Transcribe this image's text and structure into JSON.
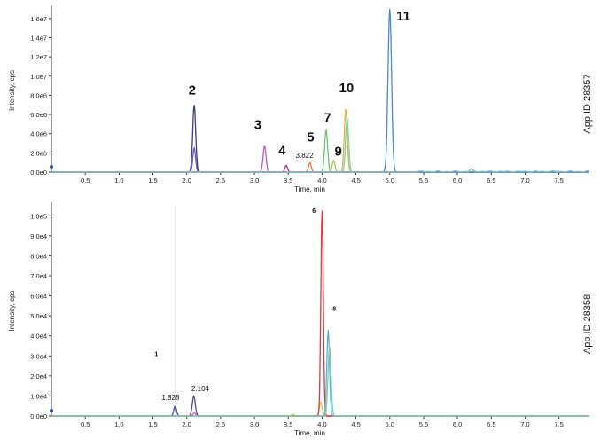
{
  "chart_data": [
    {
      "type": "line",
      "xlabel": "Time, min",
      "ylabel": "Intensity, cps",
      "side_label": "App ID 28357",
      "xlim": [
        0,
        7.95
      ],
      "ylim": [
        0,
        17000000.0
      ],
      "x_ticks": [
        0.5,
        1.0,
        1.5,
        2.0,
        2.5,
        3.0,
        3.5,
        4.0,
        4.5,
        5.0,
        5.5,
        6.0,
        6.5,
        7.0,
        7.5
      ],
      "x_tick_labels": [
        "0.5",
        "1.0",
        "1.5",
        "2.0",
        "2.5",
        "3.0",
        "3.5",
        "4.0",
        "4.5",
        "5.0",
        "5.5",
        "6.0",
        "6.5",
        "7.0",
        "7.5"
      ],
      "y_ticks": [
        0,
        2000000.0,
        4000000.0,
        6000000.0,
        8000000.0,
        10000000.0,
        12000000.0,
        14000000.0,
        16000000.0
      ],
      "y_tick_labels": [
        "0.0e0",
        "2.0e6",
        "4.0e6",
        "6.0e6",
        "8.0e6",
        "1.0e7",
        "1.2e7",
        "1.4e7",
        "1.6e7"
      ],
      "series": [
        {
          "color": "#3b3a8c",
          "peaks": [
            {
              "x": 2.11,
              "y": 7000000,
              "w": 0.022
            }
          ]
        },
        {
          "color": "#6a5ab0",
          "peaks": [
            {
              "x": 2.11,
              "y": 2500000,
              "w": 0.02
            }
          ]
        },
        {
          "color": "#b45ac8",
          "peaks": [
            {
              "x": 3.15,
              "y": 2700000,
              "w": 0.022
            }
          ]
        },
        {
          "color": "#a03070",
          "peaks": [
            {
              "x": 3.47,
              "y": 700000,
              "w": 0.02
            }
          ]
        },
        {
          "color": "#e07a3a",
          "peaks": [
            {
              "x": 3.82,
              "y": 1000000,
              "w": 0.02
            }
          ]
        },
        {
          "color": "#6cc46c",
          "peaks": [
            {
              "x": 4.06,
              "y": 4400000,
              "w": 0.022
            }
          ]
        },
        {
          "color": "#9ccc4a",
          "peaks": [
            {
              "x": 4.17,
              "y": 1200000,
              "w": 0.02
            }
          ]
        },
        {
          "color": "#d8b84a",
          "peaks": [
            {
              "x": 4.35,
              "y": 6600000,
              "w": 0.022
            }
          ]
        },
        {
          "color": "#7fd0a8",
          "peaks": [
            {
              "x": 4.37,
              "y": 5700000,
              "w": 0.022
            }
          ]
        },
        {
          "color": "#4a88c8",
          "peaks": [
            {
              "x": 5.0,
              "y": 17000000,
              "w": 0.026
            }
          ]
        },
        {
          "color": "#8ab8d8",
          "peaks": [
            {
              "x": 6.2,
              "y": 250000,
              "w": 0.02
            }
          ],
          "noise": 120000,
          "noise_from": 5.4
        }
      ],
      "baselines": [
        {
          "color": "#d03a3a",
          "y": 0
        },
        {
          "color": "#3b8a8c",
          "y": 0
        }
      ],
      "peak_labels": [
        {
          "text": "2",
          "x": 2.08,
          "y": 8100000,
          "size": "large"
        },
        {
          "text": "3",
          "x": 3.05,
          "y": 4500000,
          "size": "large"
        },
        {
          "text": "4",
          "x": 3.41,
          "y": 1800000,
          "size": "large"
        },
        {
          "text": "5",
          "x": 3.83,
          "y": 3200000,
          "size": "large"
        },
        {
          "text": "3.822",
          "x": 3.74,
          "y": 1500000,
          "size": "small"
        },
        {
          "text": "7",
          "x": 4.08,
          "y": 5200000,
          "size": "large"
        },
        {
          "text": "9",
          "x": 4.24,
          "y": 1700000,
          "size": "large"
        },
        {
          "text": "10",
          "x": 4.36,
          "y": 8300000,
          "size": "large"
        },
        {
          "text": "11",
          "x": 5.2,
          "y": 15800000,
          "size": "large"
        }
      ]
    },
    {
      "type": "line",
      "xlabel": "Time, min",
      "ylabel": "Intensity, cps",
      "side_label": "App ID 28358",
      "xlim": [
        0,
        7.95
      ],
      "ylim": [
        0,
        105000.0
      ],
      "x_ticks": [
        0.5,
        1.0,
        1.5,
        2.0,
        2.5,
        3.0,
        3.5,
        4.0,
        4.5,
        5.0,
        5.5,
        6.0,
        6.5,
        7.0,
        7.5
      ],
      "x_tick_labels": [
        "0.5",
        "1.0",
        "1.5",
        "2.0",
        "2.5",
        "3.0",
        "3.5",
        "4.0",
        "4.5",
        "5.0",
        "5.5",
        "6.0",
        "6.5",
        "7.0",
        "7.5"
      ],
      "y_ticks": [
        0,
        10000.0,
        20000.0,
        30000.0,
        40000.0,
        50000.0,
        60000.0,
        70000.0,
        80000.0,
        90000.0,
        100000.0
      ],
      "y_tick_labels": [
        "0.0e0",
        "1.0e4",
        "2.0e4",
        "3.0e4",
        "4.0e4",
        "5.0e4",
        "6.0e4",
        "7.0e4",
        "8.0e4",
        "9.0e4",
        "1.0e5"
      ],
      "marker_line_x": 1.83,
      "series": [
        {
          "color": "#4a4aa0",
          "peaks": [
            {
              "x": 1.828,
              "y": 5000,
              "w": 0.02
            },
            {
              "x": 2.104,
              "y": 10000,
              "w": 0.022
            }
          ]
        },
        {
          "color": "#c060c0",
          "peaks": [
            {
              "x": 2.11,
              "y": 1500,
              "w": 0.02
            }
          ]
        },
        {
          "color": "#e8c040",
          "peaks": [
            {
              "x": 3.57,
              "y": 800,
              "w": 0.02
            },
            {
              "x": 3.98,
              "y": 7000,
              "w": 0.02
            }
          ]
        },
        {
          "color": "#d83a3a",
          "peaks": [
            {
              "x": 4.0,
              "y": 103000,
              "w": 0.018
            }
          ]
        },
        {
          "color": "#5ab0e0",
          "peaks": [
            {
              "x": 4.09,
              "y": 43000,
              "w": 0.02
            }
          ]
        },
        {
          "color": "#7fd0a8",
          "peaks": [
            {
              "x": 4.11,
              "y": 35000,
              "w": 0.022
            }
          ]
        }
      ],
      "baselines": [
        {
          "color": "#8aa0c0",
          "y": 0
        }
      ],
      "peak_labels": [
        {
          "text": "6",
          "x": 3.88,
          "y": 101500,
          "size": "tiny"
        },
        {
          "text": "8",
          "x": 4.18,
          "y": 52500,
          "size": "tiny"
        },
        {
          "text": "1",
          "x": 1.55,
          "y": 30000,
          "size": "tiny"
        },
        {
          "text": "1.828",
          "x": 1.76,
          "y": 8000,
          "size": "small"
        },
        {
          "text": "2.104",
          "x": 2.2,
          "y": 12500,
          "size": "small"
        }
      ]
    }
  ]
}
